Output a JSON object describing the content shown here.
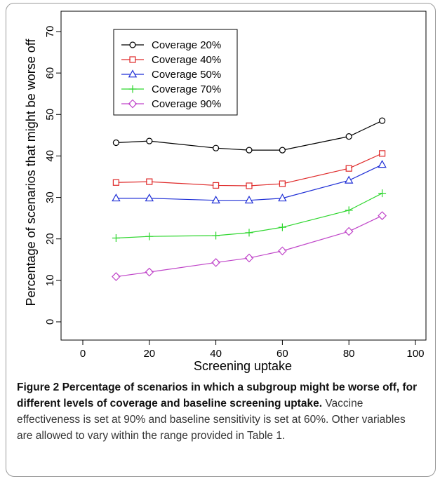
{
  "chart_data": {
    "type": "line",
    "title": "",
    "xlabel": "Screening uptake",
    "ylabel": "Percentage of scenarios that might be worse off",
    "xlim": [
      0,
      100
    ],
    "ylim": [
      0,
      70
    ],
    "xticks": [
      "0",
      "20",
      "40",
      "60",
      "80",
      "100"
    ],
    "yticks": [
      "0",
      "10",
      "20",
      "30",
      "40",
      "50",
      "60",
      "70"
    ],
    "legend_position": "top-left",
    "grid": false,
    "x": [
      10,
      20,
      40,
      50,
      60,
      80,
      90
    ],
    "series": [
      {
        "name": "Coverage 20%",
        "color": "#000000",
        "marker": "circle",
        "values": [
          43.2,
          43.6,
          41.9,
          41.4,
          41.4,
          44.7,
          48.5
        ]
      },
      {
        "name": "Coverage 40%",
        "color": "#df2a2a",
        "marker": "square",
        "values": [
          33.6,
          33.8,
          32.9,
          32.8,
          33.3,
          37.0,
          40.6
        ]
      },
      {
        "name": "Coverage 50%",
        "color": "#1f2fd6",
        "marker": "triangle",
        "values": [
          29.8,
          29.8,
          29.3,
          29.3,
          29.8,
          34.1,
          37.9
        ]
      },
      {
        "name": "Coverage 70%",
        "color": "#2dd62d",
        "marker": "plus",
        "values": [
          20.2,
          20.6,
          20.8,
          21.5,
          22.8,
          26.9,
          31.0
        ]
      },
      {
        "name": "Coverage 90%",
        "color": "#c046c9",
        "marker": "diamond",
        "values": [
          10.9,
          12.0,
          14.3,
          15.4,
          17.1,
          21.8,
          25.6
        ]
      }
    ]
  },
  "caption": {
    "title": "Figure 2 Percentage of scenarios in which a subgroup might be worse off, for different levels of coverage and baseline screening uptake.",
    "body": " Vaccine effectiveness is set at 90% and baseline sensitivity is set at 60%. Other variables are allowed to vary within the range provided in Table 1."
  }
}
